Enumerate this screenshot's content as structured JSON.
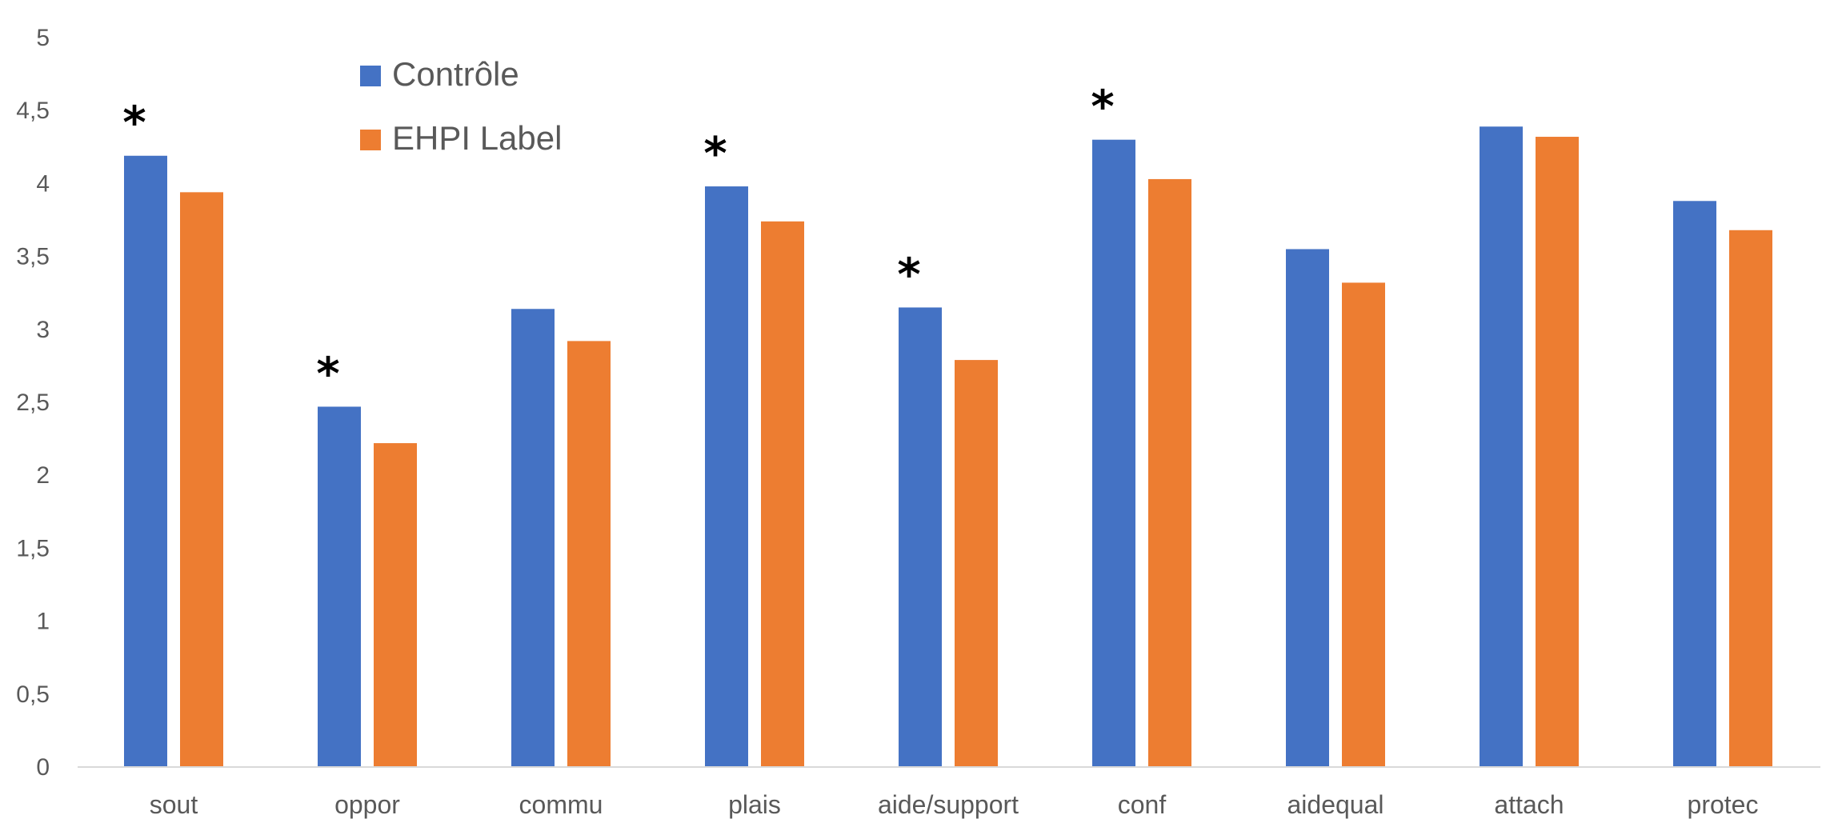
{
  "chart_data": {
    "type": "bar",
    "categories": [
      "sout",
      "oppor",
      "commu",
      "plais",
      "aide/support",
      "conf",
      "aidequal",
      "attach",
      "protec"
    ],
    "series": [
      {
        "name": "Contrôle",
        "color": "#4472C4",
        "values": [
          4.19,
          2.47,
          3.14,
          3.98,
          3.15,
          4.3,
          3.55,
          4.39,
          3.88
        ]
      },
      {
        "name": "EHPI Label",
        "color": "#ED7D31",
        "values": [
          3.94,
          2.22,
          2.92,
          3.74,
          2.79,
          4.03,
          3.32,
          4.32,
          3.68
        ]
      }
    ],
    "significance": {
      "symbol": "*",
      "categories": [
        "sout",
        "oppor",
        "plais",
        "aide/support",
        "conf"
      ]
    },
    "ylim": [
      0,
      5
    ],
    "yticks": [
      0,
      0.5,
      1,
      1.5,
      2,
      2.5,
      3,
      3.5,
      4,
      4.5,
      5
    ],
    "ytick_labels": [
      "0",
      "0,5",
      "1",
      "1,5",
      "2",
      "2,5",
      "3",
      "3,5",
      "4",
      "4,5",
      "5"
    ],
    "grid": false,
    "legend": {
      "position": "top-left"
    },
    "title": "",
    "xlabel": "",
    "ylabel": ""
  }
}
